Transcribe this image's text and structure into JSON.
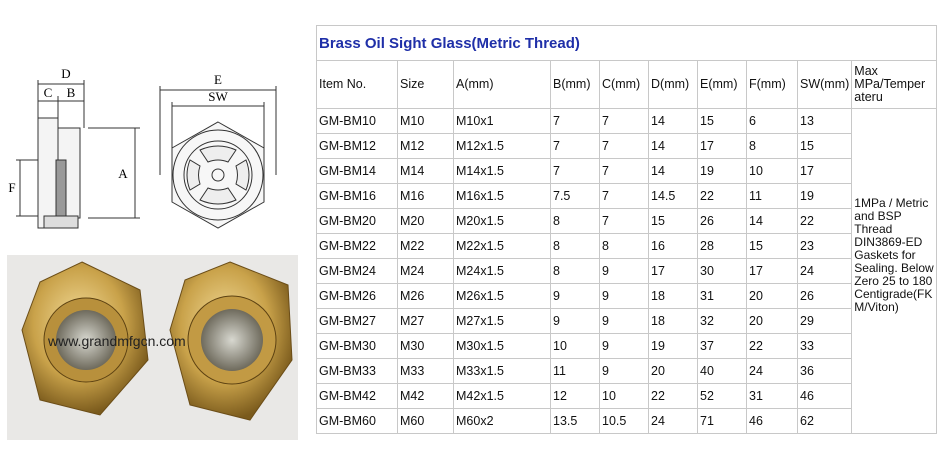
{
  "drawing": {
    "labels": {
      "d": "D",
      "c": "C",
      "b": "B",
      "f": "F",
      "e": "E",
      "sw": "SW",
      "a": "A"
    }
  },
  "photo": {
    "watermark": "www.grandmfgcn.com"
  },
  "table": {
    "title": "Brass Oil Sight Glass(Metric Thread)",
    "headers": [
      "Item No.",
      "Size",
      "A(mm)",
      "B(mm)",
      "C(mm)",
      "D(mm)",
      "E(mm)",
      "F(mm)",
      "SW(mm)",
      "Max MPa/Temper ateru"
    ],
    "rows": [
      [
        "GM-BM10",
        "M10",
        "M10x1",
        "7",
        "7",
        "14",
        "15",
        "6",
        "13"
      ],
      [
        "GM-BM12",
        "M12",
        "M12x1.5",
        "7",
        "7",
        "14",
        "17",
        "8",
        "15"
      ],
      [
        "GM-BM14",
        "M14",
        "M14x1.5",
        "7",
        "7",
        "14",
        "19",
        "10",
        "17"
      ],
      [
        "GM-BM16",
        "M16",
        "M16x1.5",
        "7.5",
        "7",
        "14.5",
        "22",
        "11",
        "19"
      ],
      [
        "GM-BM20",
        "M20",
        "M20x1.5",
        "8",
        "7",
        "15",
        "26",
        "14",
        "22"
      ],
      [
        "GM-BM22",
        "M22",
        "M22x1.5",
        "8",
        "8",
        "16",
        "28",
        "15",
        "23"
      ],
      [
        "GM-BM24",
        "M24",
        "M24x1.5",
        "8",
        "9",
        "17",
        "30",
        "17",
        "24"
      ],
      [
        "GM-BM26",
        "M26",
        "M26x1.5",
        "9",
        "9",
        "18",
        "31",
        "20",
        "26"
      ],
      [
        "GM-BM27",
        "M27",
        "M27x1.5",
        "9",
        "9",
        "18",
        "32",
        "20",
        "29"
      ],
      [
        "GM-BM30",
        "M30",
        "M30x1.5",
        "10",
        "9",
        "19",
        "37",
        "22",
        "33"
      ],
      [
        "GM-BM33",
        "M33",
        "M33x1.5",
        "11",
        "9",
        "20",
        "40",
        "24",
        "36"
      ],
      [
        "GM-BM42",
        "M42",
        "M42x1.5",
        "12",
        "10",
        "22",
        "52",
        "31",
        "46"
      ],
      [
        "GM-BM60",
        "M60",
        "M60x2",
        "13.5",
        "10.5",
        "24",
        "71",
        "46",
        "62"
      ]
    ],
    "note": "1MPa / Metric and BSP Thread DIN3869-ED Gaskets for Sealing. Below Zero 25 to 180 Centigrade(FKM/Viton)"
  }
}
